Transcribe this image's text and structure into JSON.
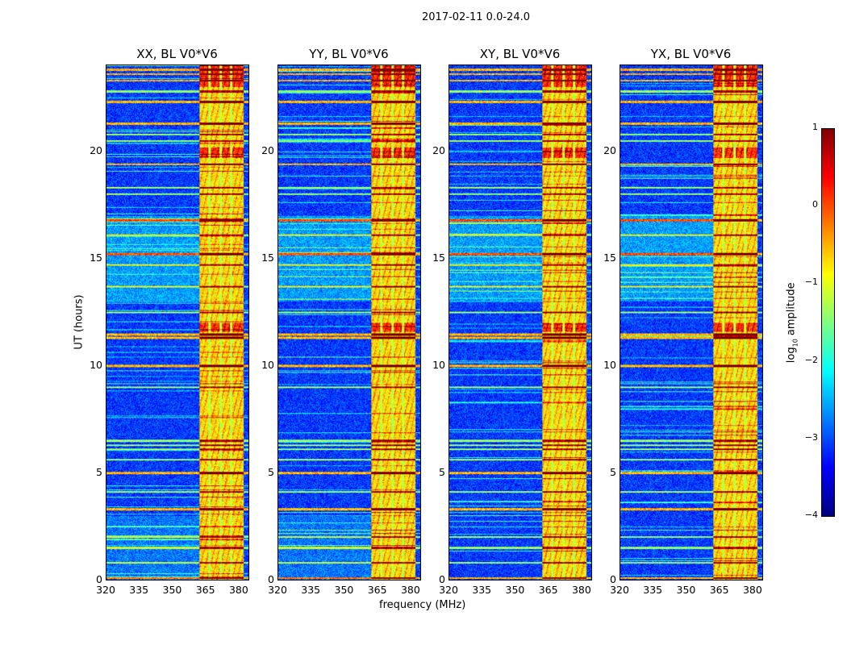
{
  "chart_data": {
    "type": "heatmap",
    "title": "2017-02-11 0.0-24.0",
    "xlabel": "frequency (MHz)",
    "ylabel": "UT (hours)",
    "xlim": [
      320,
      384.4
    ],
    "ylim": [
      0,
      24
    ],
    "xticks": [
      "320",
      "335",
      "350",
      "365",
      "380"
    ],
    "xtick_values": [
      320,
      335,
      350,
      365,
      380
    ],
    "yticks": [
      "0",
      "5",
      "10",
      "15",
      "20"
    ],
    "ytick_values": [
      0,
      5,
      10,
      15,
      20
    ],
    "panels": [
      {
        "title": "XX, BL V0*V6"
      },
      {
        "title": "YY, BL V0*V6"
      },
      {
        "title": "XY, BL V0*V6"
      },
      {
        "title": "YX, BL V0*V6"
      }
    ],
    "colorbar": {
      "label_prefix": "log",
      "label_sub": "10",
      "label_suffix": " amplitude",
      "range": [
        -4,
        1
      ],
      "ticks": [
        "1",
        "0",
        "−1",
        "−2",
        "−3",
        "−4"
      ],
      "tick_values": [
        1,
        0,
        -1,
        -2,
        -3,
        -4
      ],
      "colormap": "jet"
    },
    "features": {
      "background_level": -3.1,
      "rfi_band_mhz": [
        362,
        382
      ],
      "rfi_band_level": -0.8,
      "band_gaps_mhz": [
        366.5,
        371.5,
        376.5
      ],
      "strong_rows_hours": [
        0.1,
        3.3,
        5.0,
        10.0,
        11.3,
        11.45,
        15.2,
        16.8,
        19.4,
        21.3,
        22.3,
        23.3,
        23.6,
        23.8
      ],
      "medium_rows_hours": [
        0.8,
        1.5,
        2.0,
        4.1,
        5.6,
        6.1,
        6.3,
        6.5,
        9.0,
        12.5,
        13.7,
        14.7,
        16.1,
        18.0,
        18.3,
        20.5,
        20.8,
        22.8
      ],
      "hot_band_hours": [
        [
          19.7,
          20.2
        ],
        [
          11.6,
          12.0
        ],
        [
          23.0,
          24.0
        ]
      ]
    }
  }
}
